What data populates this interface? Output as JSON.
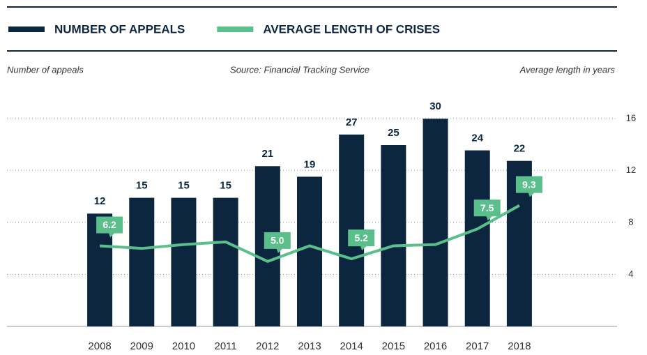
{
  "chart_data": {
    "type": "bar",
    "y_label": "Number of appeals",
    "source": "Source: Financial Tracking Service",
    "y2_label": "Average length in years",
    "categories": [
      "2008",
      "2009",
      "2010",
      "2011",
      "2012",
      "2013",
      "2014",
      "2015",
      "2016",
      "2017",
      "2018"
    ],
    "series": [
      {
        "name": "NUMBER OF APPEALS",
        "type": "bar",
        "color": "#0c2640",
        "values": [
          12,
          15,
          15,
          15,
          21,
          19,
          27,
          25,
          30,
          24,
          22
        ]
      },
      {
        "name": "AVERAGE LENGTH OF CRISES",
        "type": "line",
        "axis": "y2",
        "color": "#5bbf8c",
        "values": [
          6.2,
          6.0,
          6.3,
          6.5,
          5.0,
          6.2,
          5.2,
          6.2,
          6.3,
          7.5,
          9.3
        ],
        "value_labels": [
          "6.2",
          null,
          null,
          null,
          "5.0",
          null,
          "5.2",
          null,
          null,
          "7.5",
          "9.3"
        ]
      }
    ],
    "ylim": [
      -9.4,
      34
    ],
    "y2lim": [
      0,
      17.6
    ],
    "y2ticks": [
      4,
      8,
      12,
      16
    ],
    "grid": true
  }
}
